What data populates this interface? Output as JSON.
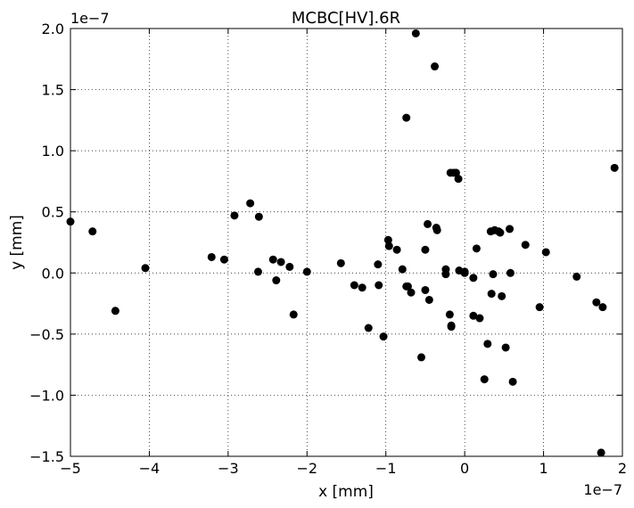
{
  "chart_data": {
    "type": "scatter",
    "title": "MCBC[HV].6R",
    "xlabel": "x [mm]",
    "ylabel": "y [mm]",
    "x_offset_label": "1e−7",
    "y_offset_label": "1e−7",
    "xlim": [
      -5,
      2
    ],
    "ylim": [
      -1.5,
      2.0
    ],
    "scale_factor": "1e-7",
    "grid": true,
    "marker_color": "#000000",
    "x_ticks": [
      -5,
      -4,
      -3,
      -2,
      -1,
      0,
      1,
      2
    ],
    "x_tick_labels": [
      "−5",
      "−4",
      "−3",
      "−2",
      "−1",
      "0",
      "1",
      "2"
    ],
    "y_ticks": [
      -1.5,
      -1.0,
      -0.5,
      0.0,
      0.5,
      1.0,
      1.5,
      2.0
    ],
    "y_tick_labels": [
      "−1.5",
      "−1.0",
      "−0.5",
      "0.0",
      "0.5",
      "1.0",
      "1.5",
      "2.0"
    ],
    "points": [
      [
        -5.0,
        0.42
      ],
      [
        -4.72,
        0.34
      ],
      [
        -4.43,
        -0.31
      ],
      [
        -4.05,
        0.04
      ],
      [
        -3.21,
        0.13
      ],
      [
        -3.05,
        0.11
      ],
      [
        -2.92,
        0.47
      ],
      [
        -2.72,
        0.57
      ],
      [
        -2.61,
        0.46
      ],
      [
        -2.62,
        0.01
      ],
      [
        -2.43,
        0.11
      ],
      [
        -2.39,
        -0.06
      ],
      [
        -2.33,
        0.09
      ],
      [
        -2.22,
        0.05
      ],
      [
        -2.17,
        -0.34
      ],
      [
        -2.0,
        0.01
      ],
      [
        -1.57,
        0.08
      ],
      [
        -1.4,
        -0.1
      ],
      [
        -1.3,
        -0.12
      ],
      [
        -1.22,
        -0.45
      ],
      [
        -1.1,
        0.07
      ],
      [
        -1.09,
        -0.1
      ],
      [
        -1.03,
        -0.52
      ],
      [
        -0.97,
        0.27
      ],
      [
        -0.96,
        0.22
      ],
      [
        -0.86,
        0.19
      ],
      [
        -0.79,
        0.03
      ],
      [
        -0.74,
        1.27
      ],
      [
        -0.74,
        -0.11
      ],
      [
        -0.72,
        -0.11
      ],
      [
        -0.68,
        -0.16
      ],
      [
        -0.62,
        1.96
      ],
      [
        -0.55,
        -0.69
      ],
      [
        -0.5,
        0.19
      ],
      [
        -0.5,
        -0.14
      ],
      [
        -0.47,
        0.4
      ],
      [
        -0.45,
        -0.22
      ],
      [
        -0.38,
        1.69
      ],
      [
        -0.36,
        0.37
      ],
      [
        -0.35,
        0.35
      ],
      [
        -0.24,
        -0.01
      ],
      [
        -0.24,
        0.03
      ],
      [
        -0.19,
        -0.34
      ],
      [
        -0.18,
        0.82
      ],
      [
        -0.17,
        -0.43
      ],
      [
        -0.17,
        -0.44
      ],
      [
        -0.14,
        0.82
      ],
      [
        -0.11,
        0.82
      ],
      [
        -0.08,
        0.77
      ],
      [
        -0.07,
        0.02
      ],
      [
        0.0,
        -0.0
      ],
      [
        0.0,
        0.01
      ],
      [
        0.11,
        -0.04
      ],
      [
        0.11,
        -0.35
      ],
      [
        0.15,
        0.2
      ],
      [
        0.19,
        -0.37
      ],
      [
        0.25,
        -0.87
      ],
      [
        0.29,
        -0.58
      ],
      [
        0.33,
        0.34
      ],
      [
        0.34,
        -0.17
      ],
      [
        0.36,
        -0.01
      ],
      [
        0.38,
        0.35
      ],
      [
        0.43,
        0.34
      ],
      [
        0.45,
        0.33
      ],
      [
        0.47,
        -0.19
      ],
      [
        0.52,
        -0.61
      ],
      [
        0.57,
        0.36
      ],
      [
        0.58,
        0.0
      ],
      [
        0.61,
        -0.89
      ],
      [
        0.77,
        0.23
      ],
      [
        0.95,
        -0.28
      ],
      [
        1.03,
        0.17
      ],
      [
        1.42,
        -0.03
      ],
      [
        1.67,
        -0.24
      ],
      [
        1.73,
        -1.47
      ],
      [
        1.75,
        -0.28
      ],
      [
        1.9,
        0.86
      ]
    ]
  }
}
